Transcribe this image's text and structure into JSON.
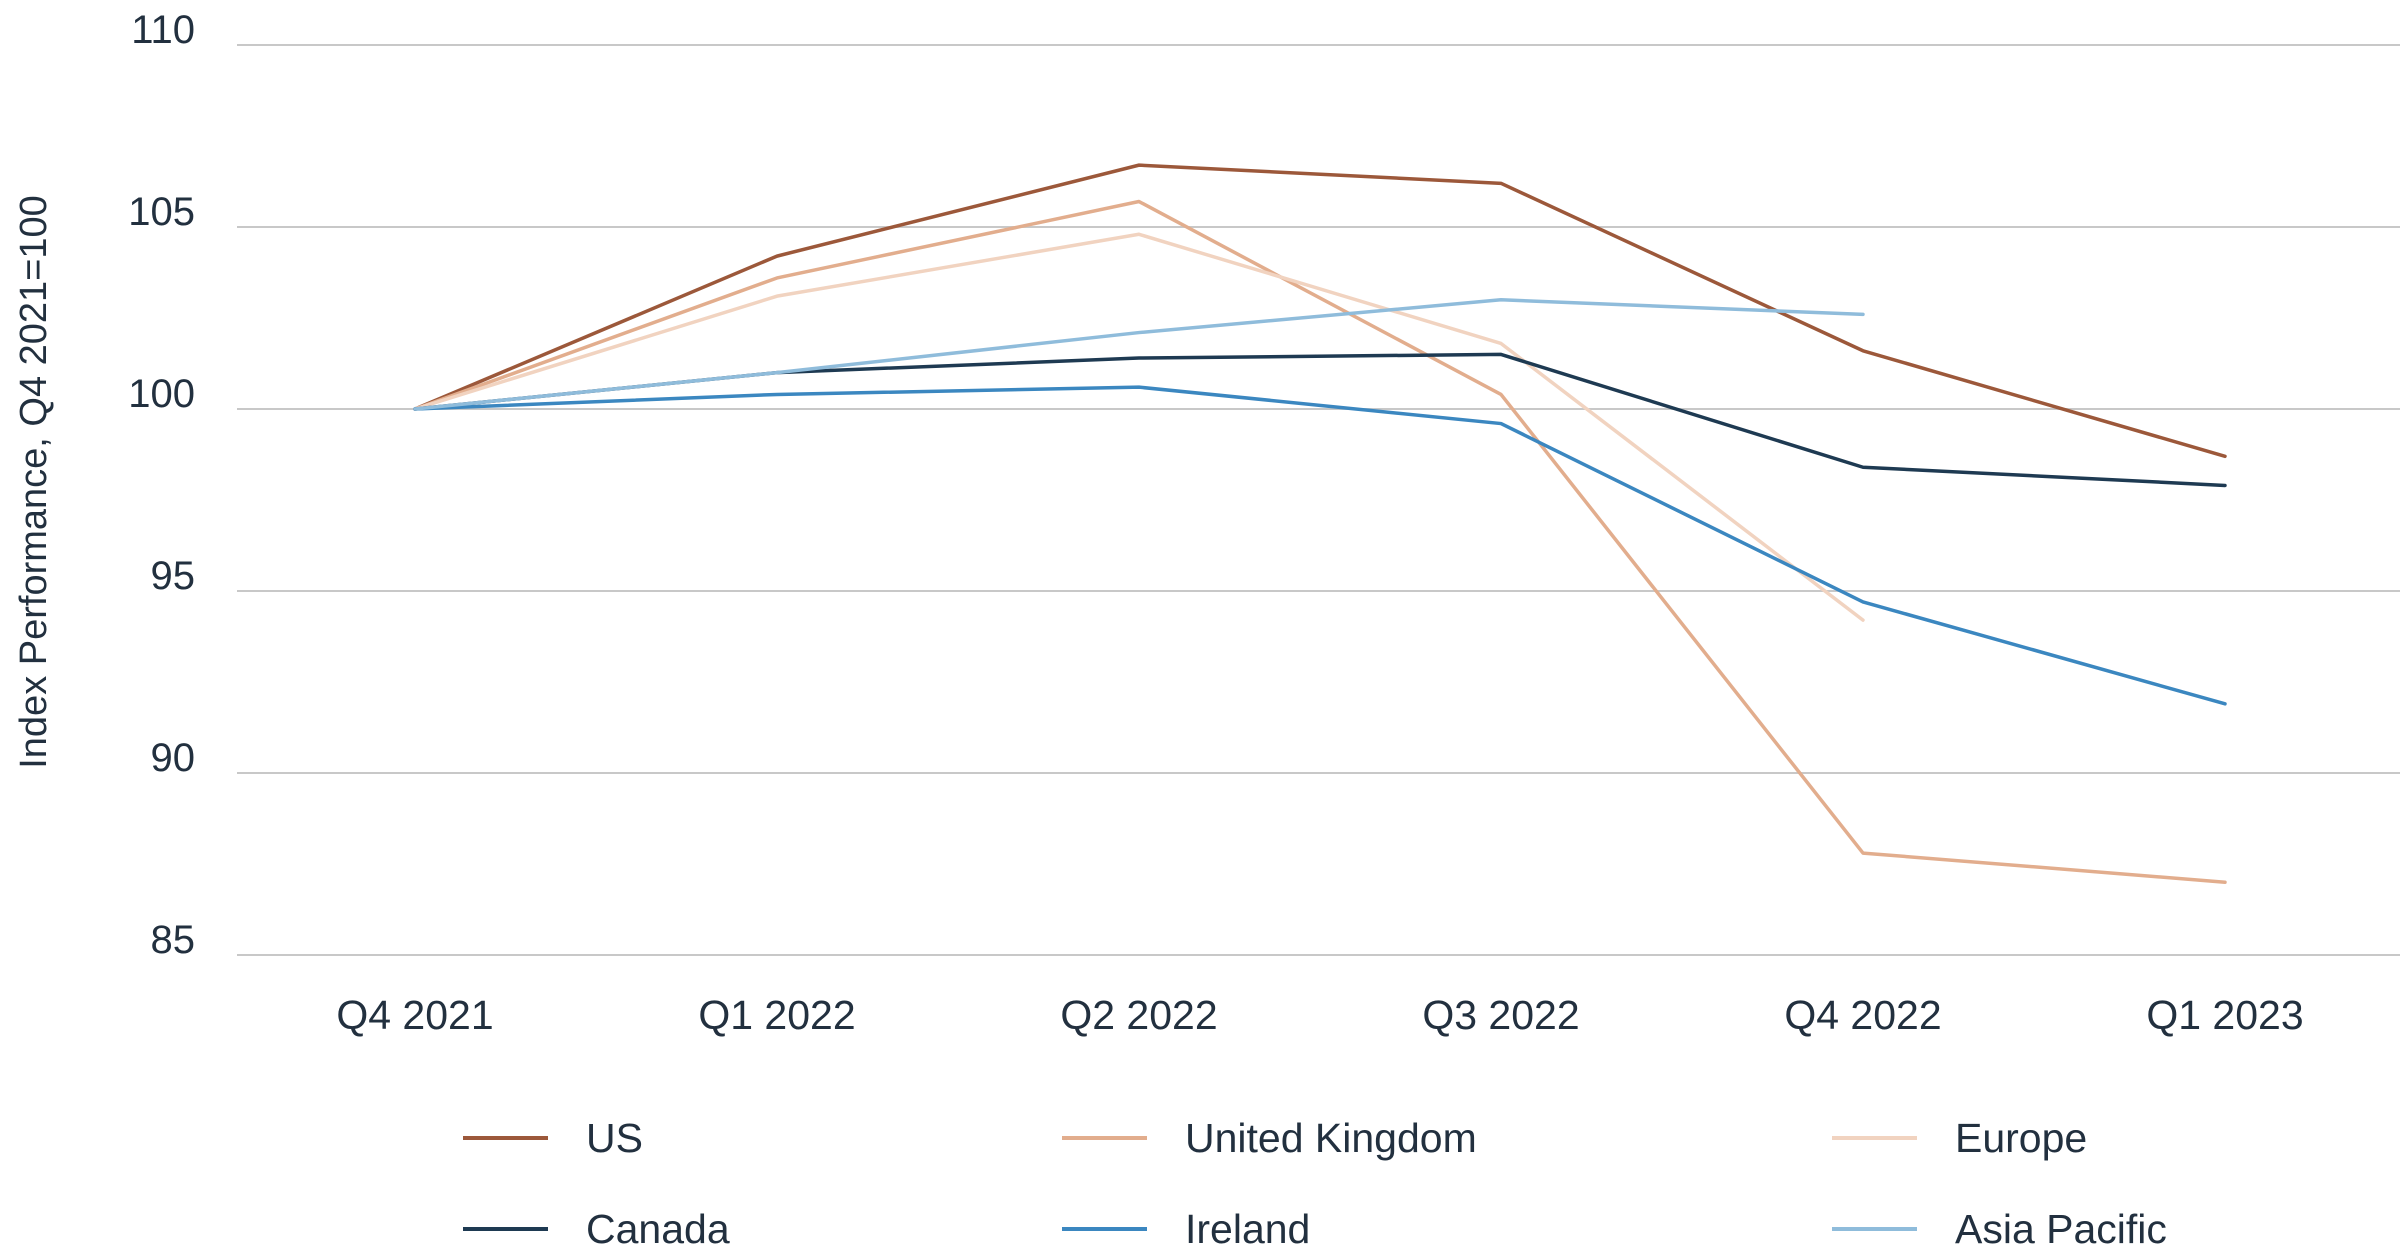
{
  "chart_data": {
    "type": "line",
    "title": "",
    "xlabel": "",
    "ylabel": "Index Performance, Q4 2021=100",
    "categories": [
      "Q4 2021",
      "Q1 2022",
      "Q2 2022",
      "Q3 2022",
      "Q4 2022",
      "Q1 2023"
    ],
    "ylim": [
      85,
      110
    ],
    "yticks": [
      "85",
      "90",
      "95",
      "100",
      "105",
      "110"
    ],
    "grid": "horizontal",
    "legend_position": "bottom",
    "series": [
      {
        "name": "US",
        "color": "#9c583a",
        "values": [
          100,
          104.2,
          106.7,
          106.2,
          101.6,
          98.7
        ]
      },
      {
        "name": "United Kingdom",
        "color": "#e2ad8d",
        "values": [
          100,
          103.6,
          105.7,
          100.4,
          87.8,
          87.0
        ]
      },
      {
        "name": "Europe",
        "color": "#f1d3c0",
        "values": [
          100,
          103.1,
          104.8,
          101.8,
          94.2,
          null
        ]
      },
      {
        "name": "Canada",
        "color": "#1e3a52",
        "values": [
          100,
          101.0,
          101.4,
          101.5,
          98.4,
          97.9
        ]
      },
      {
        "name": "Ireland",
        "color": "#3b87c0",
        "values": [
          100,
          100.4,
          100.6,
          99.6,
          94.7,
          91.9
        ]
      },
      {
        "name": "Asia Pacific",
        "color": "#8fbcdb",
        "values": [
          100,
          101.0,
          102.1,
          103.0,
          102.6,
          null
        ]
      }
    ]
  }
}
